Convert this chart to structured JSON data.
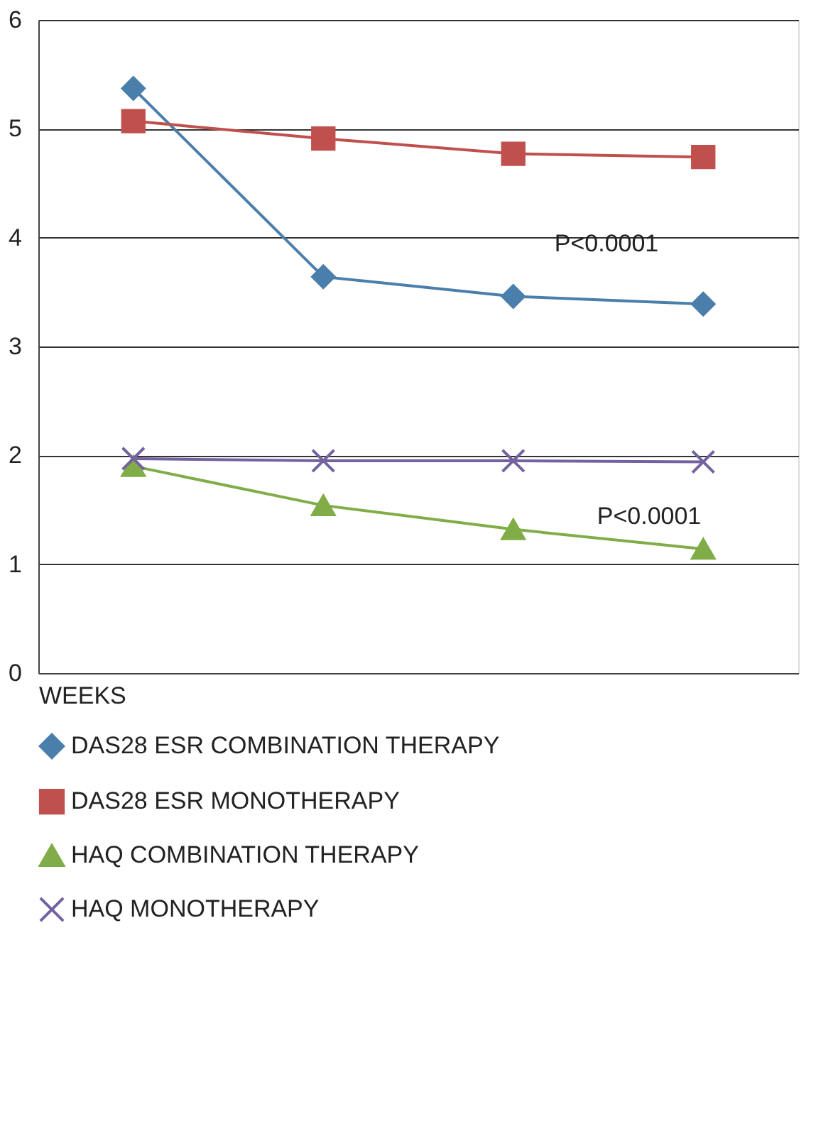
{
  "chart_data": {
    "type": "line",
    "xlabel": "WEEKS",
    "categories": [
      null,
      null,
      null,
      null
    ],
    "ylim": [
      0,
      6
    ],
    "yticks": [
      0,
      1,
      2,
      3,
      4,
      5,
      6
    ],
    "grid": "y",
    "legend": "bottom",
    "line_style": "solid",
    "series": [
      {
        "name": "DAS28 ESR COMBINATION THERAPY",
        "color": "#4a7eab",
        "marker": "diamond",
        "values": [
          5.37,
          3.64,
          3.46,
          3.39
        ]
      },
      {
        "name": "DAS28 ESR MONOTHERAPY",
        "color": "#c0504d",
        "marker": "square",
        "values": [
          5.07,
          4.91,
          4.77,
          4.74
        ]
      },
      {
        "name": "HAQ COMBINATION THERAPY",
        "color": "#80ad48",
        "marker": "triangle",
        "values": [
          1.9,
          1.54,
          1.32,
          1.14
        ]
      },
      {
        "name": "HAQ MONOTHERAPY",
        "color": "#7462a0",
        "marker": "cross",
        "values": [
          1.97,
          1.95,
          1.95,
          1.94
        ]
      }
    ],
    "annotations": [
      "P<0.0001",
      "P<0.0001"
    ]
  }
}
